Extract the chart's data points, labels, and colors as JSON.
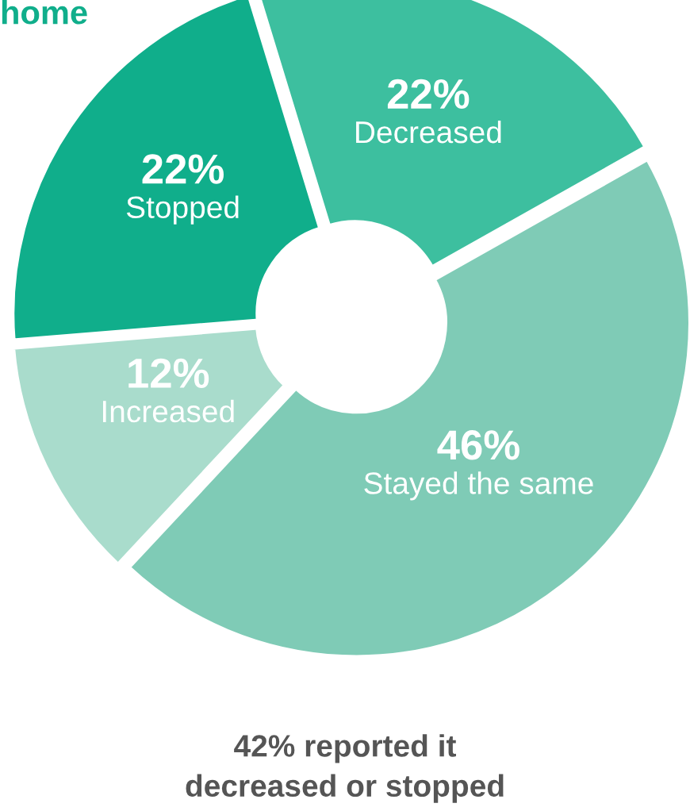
{
  "chart_data": {
    "type": "donut",
    "title": "home",
    "categories": [
      "Decreased",
      "Stayed the same",
      "Increased",
      "Stopped"
    ],
    "values": [
      22,
      46,
      12,
      22
    ],
    "colors": [
      "#3dbf9f",
      "#7fcbb6",
      "#a9dccc",
      "#10ae8b"
    ],
    "value_labels": [
      "22%",
      "46%",
      "12%",
      "22%"
    ],
    "annotations": [
      "42% reported it\ndecreased or stopped"
    ]
  }
}
